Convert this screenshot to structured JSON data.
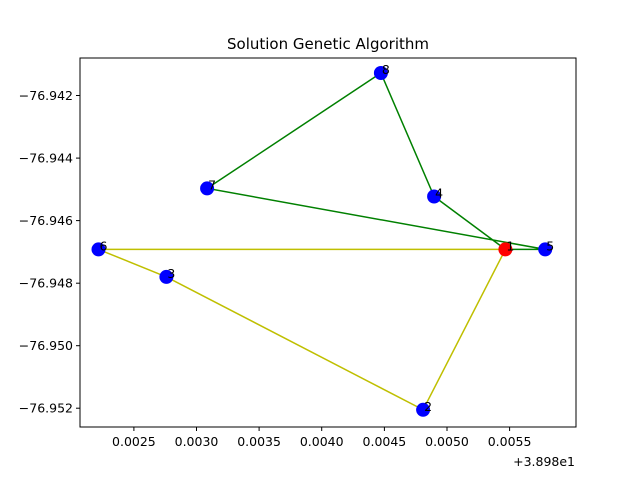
{
  "chart_data": {
    "type": "scatter",
    "title": "Solution Genetic Algorithm",
    "xlabel": "",
    "ylabel": "",
    "x_offset_label": "+3.898e1",
    "xlim": [
      0.00207,
      0.00603
    ],
    "ylim": [
      -76.9526,
      -76.9408
    ],
    "grid": false,
    "xticks": [
      0.0025,
      0.003,
      0.0035,
      0.004,
      0.0045,
      0.005,
      0.0055
    ],
    "xtick_labels": [
      "0.0025",
      "0.0030",
      "0.0035",
      "0.0040",
      "0.0045",
      "0.0050",
      "0.0055"
    ],
    "yticks": [
      -76.952,
      -76.95,
      -76.948,
      -76.946,
      -76.944,
      -76.942
    ],
    "ytick_labels": [
      "−76.952",
      "−76.950",
      "−76.948",
      "−76.946",
      "−76.944",
      "−76.942"
    ],
    "points": [
      {
        "label": "1",
        "x": 0.005466,
        "y": -76.94692,
        "color": "#ff0000"
      },
      {
        "label": "2",
        "x": 0.004809,
        "y": -76.95205,
        "color": "#0000ff"
      },
      {
        "label": "3",
        "x": 0.00276,
        "y": -76.9478,
        "color": "#0000ff"
      },
      {
        "label": "4",
        "x": 0.004897,
        "y": -76.94523,
        "color": "#0000ff"
      },
      {
        "label": "5",
        "x": 0.005784,
        "y": -76.94692,
        "color": "#0000ff"
      },
      {
        "label": "6",
        "x": 0.002218,
        "y": -76.94692,
        "color": "#0000ff"
      },
      {
        "label": "7",
        "x": 0.003085,
        "y": -76.94497,
        "color": "#0000ff"
      },
      {
        "label": "8",
        "x": 0.004472,
        "y": -76.94128,
        "color": "#0000ff"
      }
    ],
    "series": [
      {
        "color": "#bfbf00",
        "route": [
          "1",
          "6",
          "3",
          "2",
          "1"
        ]
      },
      {
        "color": "#008000",
        "route": [
          "1",
          "5",
          "7",
          "8",
          "4",
          "1"
        ]
      }
    ]
  }
}
